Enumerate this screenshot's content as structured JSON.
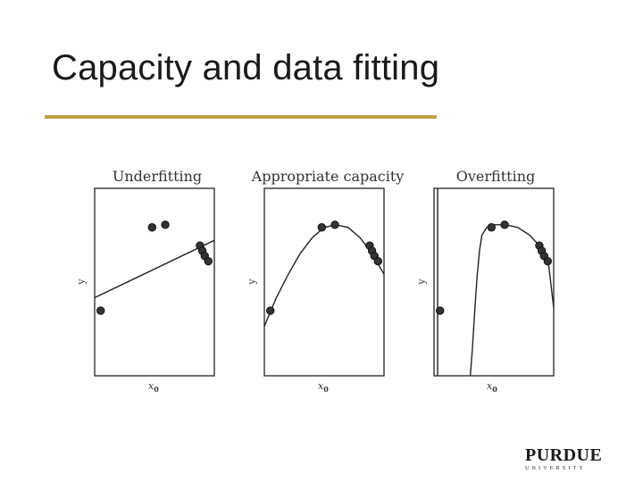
{
  "slide": {
    "title": "Capacity and data fitting",
    "rule_color": "#c0a248"
  },
  "chart_data": [
    {
      "type": "scatter",
      "title": "Underfitting",
      "xlabel": "x0",
      "ylabel": "y",
      "points": [
        {
          "x": 0.05,
          "y": 0.25
        },
        {
          "x": 0.48,
          "y": 0.57
        },
        {
          "x": 0.59,
          "y": 0.58
        },
        {
          "x": 0.88,
          "y": 0.5
        },
        {
          "x": 0.9,
          "y": 0.48
        },
        {
          "x": 0.92,
          "y": 0.46
        },
        {
          "x": 0.95,
          "y": 0.44
        }
      ],
      "fit": {
        "kind": "linear",
        "curve": [
          [
            0.0,
            0.3
          ],
          [
            1.0,
            0.52
          ]
        ]
      }
    },
    {
      "type": "scatter",
      "title": "Appropriate capacity",
      "xlabel": "x0",
      "ylabel": "y",
      "points": [
        {
          "x": 0.05,
          "y": 0.25
        },
        {
          "x": 0.48,
          "y": 0.57
        },
        {
          "x": 0.59,
          "y": 0.58
        },
        {
          "x": 0.88,
          "y": 0.5
        },
        {
          "x": 0.9,
          "y": 0.48
        },
        {
          "x": 0.92,
          "y": 0.46
        },
        {
          "x": 0.95,
          "y": 0.44
        }
      ],
      "fit": {
        "kind": "quadratic",
        "curve": [
          [
            0.0,
            0.19
          ],
          [
            0.1,
            0.3
          ],
          [
            0.2,
            0.39
          ],
          [
            0.3,
            0.47
          ],
          [
            0.4,
            0.53
          ],
          [
            0.5,
            0.57
          ],
          [
            0.6,
            0.58
          ],
          [
            0.7,
            0.57
          ],
          [
            0.8,
            0.53
          ],
          [
            0.9,
            0.47
          ],
          [
            1.0,
            0.39
          ]
        ]
      }
    },
    {
      "type": "scatter",
      "title": "Overfitting",
      "xlabel": "x0",
      "ylabel": "y",
      "points": [
        {
          "x": 0.05,
          "y": 0.25
        },
        {
          "x": 0.48,
          "y": 0.57
        },
        {
          "x": 0.59,
          "y": 0.58
        },
        {
          "x": 0.88,
          "y": 0.5
        },
        {
          "x": 0.9,
          "y": 0.48
        },
        {
          "x": 0.92,
          "y": 0.46
        },
        {
          "x": 0.95,
          "y": 0.44
        }
      ],
      "fit": {
        "kind": "high-degree polynomial",
        "vertical_line_x": 0.03,
        "curve": [
          [
            0.3,
            -0.02
          ],
          [
            0.32,
            0.1
          ],
          [
            0.34,
            0.25
          ],
          [
            0.36,
            0.38
          ],
          [
            0.38,
            0.48
          ],
          [
            0.4,
            0.54
          ],
          [
            0.44,
            0.57
          ],
          [
            0.5,
            0.58
          ],
          [
            0.6,
            0.58
          ],
          [
            0.7,
            0.57
          ],
          [
            0.8,
            0.54
          ],
          [
            0.88,
            0.5
          ],
          [
            0.92,
            0.47
          ],
          [
            0.96,
            0.42
          ],
          [
            1.0,
            0.26
          ]
        ]
      }
    }
  ],
  "logo": {
    "name": "PURDUE",
    "sub": "UNIVERSITY"
  }
}
